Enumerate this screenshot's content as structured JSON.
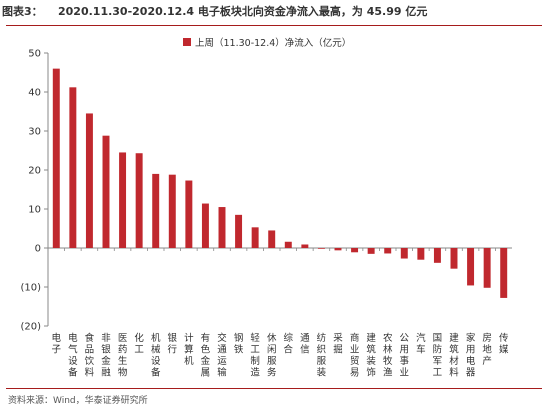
{
  "header": {
    "figure_label": "图表3：",
    "title": "2020.11.30-2020.12.4 电子板块北向资金净流入最高，为 45.99 亿元"
  },
  "footer": {
    "source": "资料来源：Wind，华泰证券研究所"
  },
  "colors": {
    "bar": "#c0282e",
    "accent": "#a61c1c",
    "axis": "#888888"
  },
  "chart_data": {
    "type": "bar",
    "title": "",
    "xlabel": "",
    "ylabel": "",
    "ylim": [
      -20,
      50
    ],
    "yticks": [
      -20,
      -10,
      0,
      10,
      20,
      30,
      40,
      50
    ],
    "ytick_labels": [
      "(20)",
      "(10)",
      "0",
      "10",
      "20",
      "30",
      "40",
      "50"
    ],
    "grid": false,
    "legend_position": "top-right",
    "categories": [
      "电子",
      "电气设备",
      "食品饮料",
      "非银金融",
      "医药生物",
      "化工",
      "机械设备",
      "银行",
      "计算机",
      "有色金属",
      "交通运输",
      "钢铁",
      "轻工制造",
      "休闲服务",
      "综合",
      "通信",
      "纺织服装",
      "采掘",
      "商业贸易",
      "建筑装饰",
      "农林牧渔",
      "公用事业",
      "汽车",
      "国防军工",
      "建筑材料",
      "家用电器",
      "房地产",
      "传媒"
    ],
    "series": [
      {
        "name": "上周（11.30-12.4）净流入（亿元）",
        "values": [
          45.99,
          41.2,
          34.5,
          28.8,
          24.5,
          24.3,
          19.0,
          18.8,
          17.3,
          11.4,
          10.5,
          8.5,
          5.3,
          4.5,
          1.6,
          0.9,
          -0.2,
          -0.6,
          -1.1,
          -1.5,
          -1.4,
          -2.7,
          -3.0,
          -3.8,
          -5.3,
          -9.6,
          -10.2,
          -12.8
        ]
      }
    ]
  }
}
